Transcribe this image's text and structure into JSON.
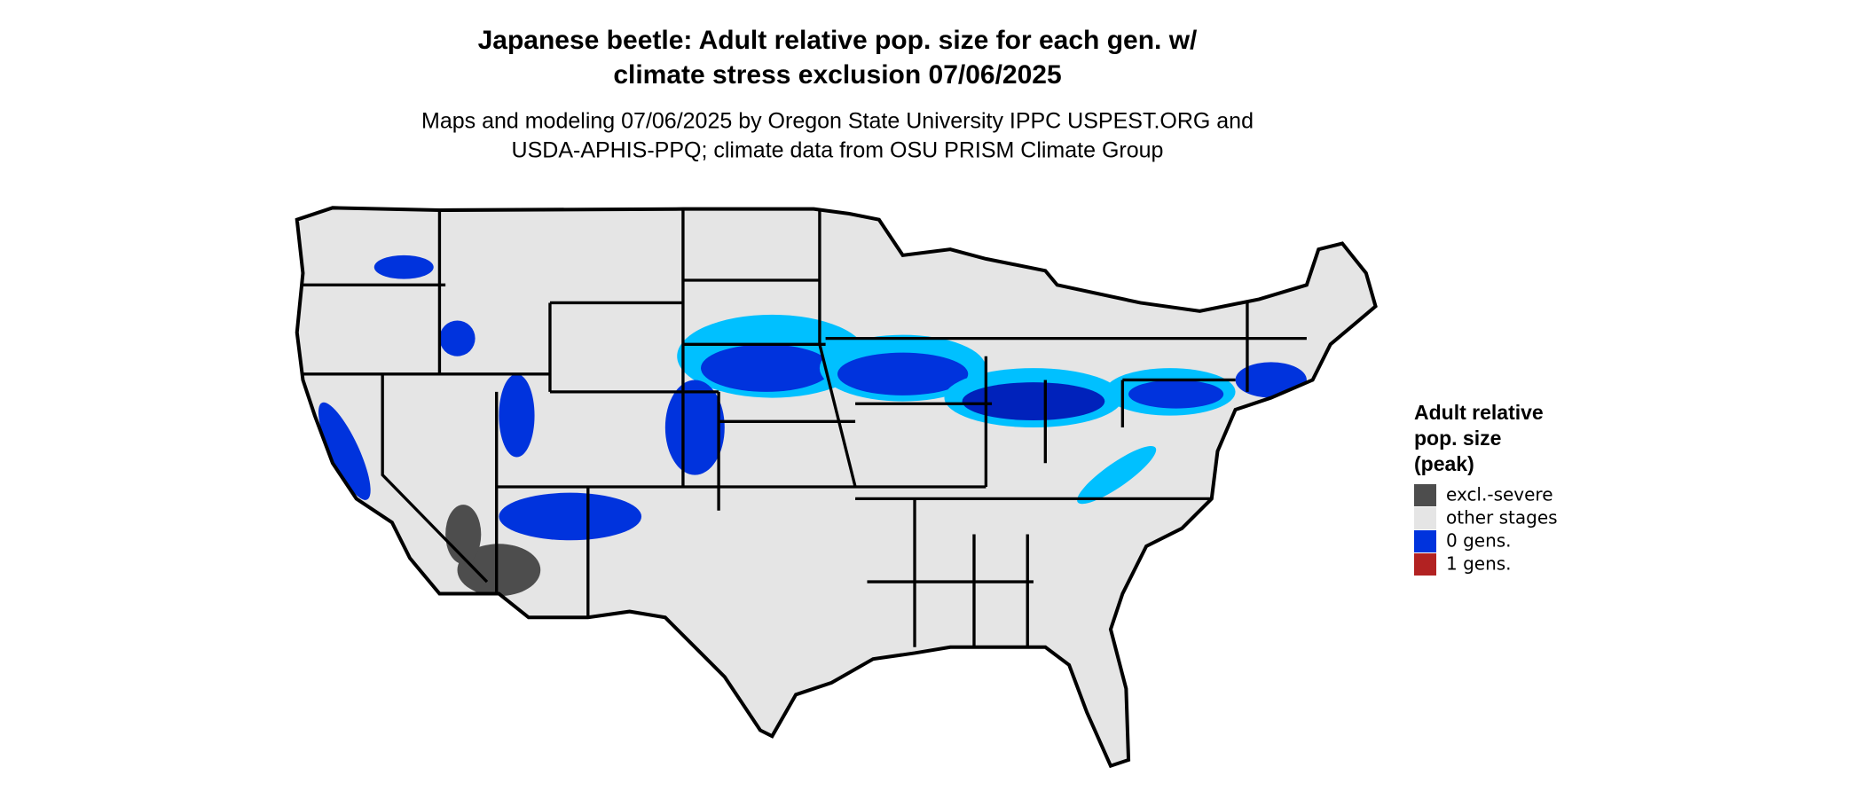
{
  "title": [
    "Japanese beetle: Adult relative pop. size for each gen. w/",
    "climate stress exclusion 07/06/2025"
  ],
  "subtitle": [
    "Maps and modeling 07/06/2025 by Oregon State University IPPC USPEST.ORG and",
    "USDA-APHIS-PPQ; climate data from OSU PRISM Climate Group"
  ],
  "legend": {
    "title": [
      "Adult relative",
      "pop. size",
      "(peak)"
    ],
    "items": [
      {
        "label": "excl.-severe",
        "color": "#4d4d4d"
      },
      {
        "label": "other stages",
        "color": "#e5e5e5"
      },
      {
        "label": "0 gens.",
        "color": "#0033dd"
      },
      {
        "label": "1 gens.",
        "color": "#b22222"
      }
    ]
  }
}
